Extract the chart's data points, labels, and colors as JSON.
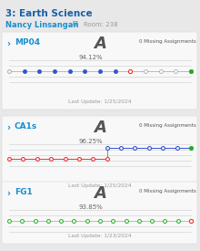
{
  "title": "3: Earth Science",
  "subtitle": "Nancy Linsangan",
  "room": "Room: 238",
  "bg_color": "#e8e8e8",
  "panel_bg": "#f5f5f5",
  "sections": [
    {
      "label": "MP04",
      "grade": "A",
      "missing": "0 Missing Assignments",
      "percent": "94.12%",
      "last_update": "Last Update: 1/25/2024",
      "two_lines": false,
      "n_dots": 13,
      "blue_dots": [
        1,
        2,
        3,
        4,
        5,
        6,
        7
      ],
      "red_dot": 8,
      "green_dot": 12,
      "white_first": true
    },
    {
      "label": "CA1s",
      "grade": "A",
      "missing": "0 Missing Assignments",
      "percent": "96.25%",
      "last_update": "Last Update: 1/25/2024",
      "two_lines": true,
      "total_span": 14,
      "red_x": [
        0,
        1,
        2,
        3,
        4,
        5,
        6,
        7
      ],
      "blue_x": [
        7,
        8,
        9,
        10,
        11,
        12,
        13
      ],
      "green_dot_idx": 6
    },
    {
      "label": "FG1",
      "grade": "A",
      "missing": "0 Missing Assignments",
      "percent": "93.85%",
      "last_update": "Last Update: 1/23/2024",
      "two_lines": false,
      "n_dots": 15,
      "blue_dots": [],
      "red_dot": 14,
      "green_dot": -1,
      "white_first": false,
      "all_green": true
    }
  ]
}
